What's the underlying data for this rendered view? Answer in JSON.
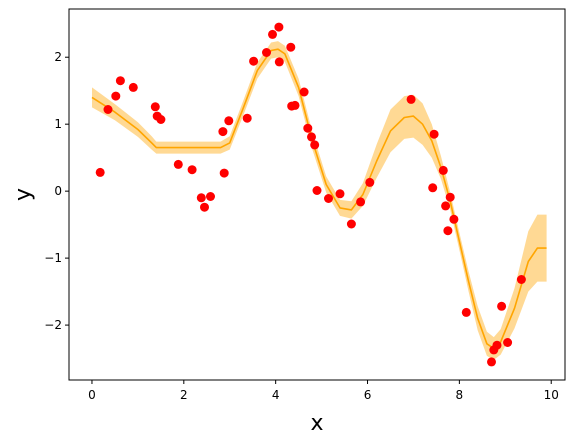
{
  "chart_data": {
    "type": "scatter",
    "title": "",
    "xlabel": "x",
    "ylabel": "y",
    "xlim": [
      -0.5,
      10.3
    ],
    "ylim": [
      -2.82,
      2.72
    ],
    "xticks": [
      0,
      2,
      4,
      6,
      8,
      10
    ],
    "xtick_labels": [
      "0",
      "2",
      "4",
      "6",
      "8",
      "10"
    ],
    "yticks": [
      -2,
      -1,
      0,
      1,
      2
    ],
    "ytick_labels": [
      "−2",
      "−1",
      "0",
      "1",
      "2"
    ],
    "grid": false,
    "legend": "none",
    "colors": {
      "points": "#ff0000",
      "fit_line": "#ffa500",
      "band": "#ffa500"
    },
    "scatter_points": {
      "x": [
        0.18,
        0.35,
        0.52,
        0.62,
        0.9,
        1.38,
        1.42,
        1.5,
        1.88,
        2.18,
        2.38,
        2.45,
        2.58,
        2.85,
        2.88,
        2.98,
        3.38,
        3.52,
        3.8,
        3.93,
        4.07,
        4.08,
        4.33,
        4.35,
        4.42,
        4.62,
        4.7,
        4.78,
        4.85,
        4.9,
        5.15,
        5.4,
        5.65,
        5.85,
        6.05,
        6.95,
        7.42,
        7.45,
        7.65,
        7.7,
        7.75,
        7.8,
        7.88,
        8.15,
        8.7,
        8.75,
        8.82,
        8.92,
        9.05,
        9.35
      ],
      "y": [
        0.28,
        1.22,
        1.42,
        1.65,
        1.55,
        1.26,
        1.12,
        1.07,
        0.4,
        0.32,
        -0.1,
        -0.24,
        -0.08,
        0.89,
        0.27,
        1.05,
        1.09,
        1.94,
        2.07,
        2.34,
        2.45,
        1.93,
        2.15,
        1.27,
        1.28,
        1.48,
        0.94,
        0.81,
        0.69,
        0.01,
        -0.11,
        -0.04,
        -0.49,
        -0.16,
        0.13,
        1.37,
        0.05,
        0.85,
        0.31,
        -0.22,
        -0.59,
        -0.09,
        -0.42,
        -1.81,
        -2.55,
        -2.37,
        -2.3,
        -1.72,
        -2.26,
        -1.32
      ]
    },
    "fit_line": {
      "x": [
        0,
        0.5,
        1.0,
        1.3,
        1.4,
        2.0,
        2.8,
        3.0,
        3.3,
        3.6,
        3.9,
        4.05,
        4.2,
        4.5,
        4.8,
        5.1,
        5.4,
        5.65,
        5.9,
        6.2,
        6.5,
        6.8,
        7.0,
        7.2,
        7.4,
        7.6,
        7.8,
        8.0,
        8.2,
        8.4,
        8.6,
        8.75,
        8.9,
        9.2,
        9.5,
        9.7,
        9.9
      ],
      "y": [
        1.4,
        1.18,
        0.92,
        0.72,
        0.65,
        0.65,
        0.65,
        0.72,
        1.25,
        1.8,
        2.1,
        2.12,
        2.05,
        1.55,
        0.75,
        0.1,
        -0.25,
        -0.28,
        -0.05,
        0.45,
        0.9,
        1.1,
        1.12,
        1.0,
        0.75,
        0.35,
        -0.15,
        -0.75,
        -1.35,
        -1.9,
        -2.28,
        -2.35,
        -2.25,
        -1.75,
        -1.05,
        -0.85,
        -0.85
      ]
    },
    "confidence_band": {
      "x": [
        0,
        0.5,
        1.0,
        1.3,
        1.4,
        2.0,
        2.8,
        3.0,
        3.3,
        3.6,
        3.9,
        4.05,
        4.2,
        4.5,
        4.8,
        5.1,
        5.4,
        5.65,
        5.9,
        6.2,
        6.5,
        6.8,
        7.0,
        7.2,
        7.4,
        7.6,
        7.8,
        8.0,
        8.2,
        8.4,
        8.6,
        8.75,
        8.9,
        9.2,
        9.5,
        9.7,
        9.9
      ],
      "upper": [
        1.55,
        1.3,
        1.03,
        0.82,
        0.74,
        0.74,
        0.74,
        0.82,
        1.36,
        1.92,
        2.22,
        2.24,
        2.17,
        1.68,
        0.88,
        0.22,
        -0.13,
        -0.15,
        0.12,
        0.7,
        1.22,
        1.42,
        1.44,
        1.31,
        1.0,
        0.52,
        -0.02,
        -0.62,
        -1.2,
        -1.72,
        -2.1,
        -2.18,
        -2.06,
        -1.45,
        -0.6,
        -0.35,
        -0.35
      ],
      "lower": [
        1.25,
        1.06,
        0.81,
        0.62,
        0.56,
        0.56,
        0.56,
        0.62,
        1.14,
        1.68,
        1.98,
        2.0,
        1.93,
        1.42,
        0.62,
        -0.02,
        -0.37,
        -0.41,
        -0.22,
        0.2,
        0.58,
        0.78,
        0.8,
        0.69,
        0.5,
        0.18,
        -0.28,
        -0.88,
        -1.5,
        -2.08,
        -2.46,
        -2.52,
        -2.44,
        -2.05,
        -1.5,
        -1.35,
        -1.35
      ]
    }
  }
}
